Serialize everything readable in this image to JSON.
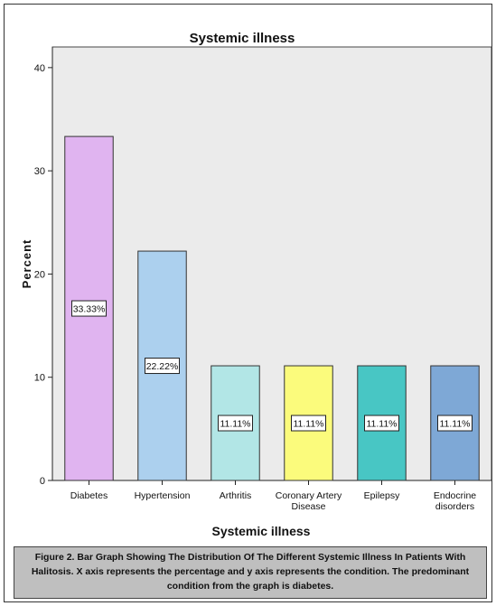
{
  "chart_data": {
    "type": "bar",
    "title": "Systemic illness",
    "xlabel": "Systemic illness",
    "ylabel": "Percent",
    "ylim": [
      0,
      42
    ],
    "yticks": [
      0,
      10,
      20,
      30,
      40
    ],
    "categories": [
      [
        "Diabetes"
      ],
      [
        "Hypertension"
      ],
      [
        "Arthritis"
      ],
      [
        "Coronary Artery",
        "Disease"
      ],
      [
        "Epilepsy"
      ],
      [
        "Endocrine",
        "disorders"
      ]
    ],
    "values": [
      33.33,
      22.22,
      11.11,
      11.11,
      11.11,
      11.11
    ],
    "data_labels": [
      "33.33%",
      "22.22%",
      "11.11%",
      "11.11%",
      "11.11%",
      "11.11%"
    ],
    "colors": [
      "#e0b4f0",
      "#acd0ee",
      "#b2e6e6",
      "#fbfb7c",
      "#48c6c4",
      "#7ea8d6"
    ],
    "plot_background": "#ebebeb",
    "grid": false,
    "legend": "none"
  },
  "caption": "Figure 2. Bar Graph Showing The Distribution Of The Different Systemic Illness In Patients With Halitosis. X axis represents the percentage and y axis represents the condition. The predominant condition from the graph is diabetes."
}
